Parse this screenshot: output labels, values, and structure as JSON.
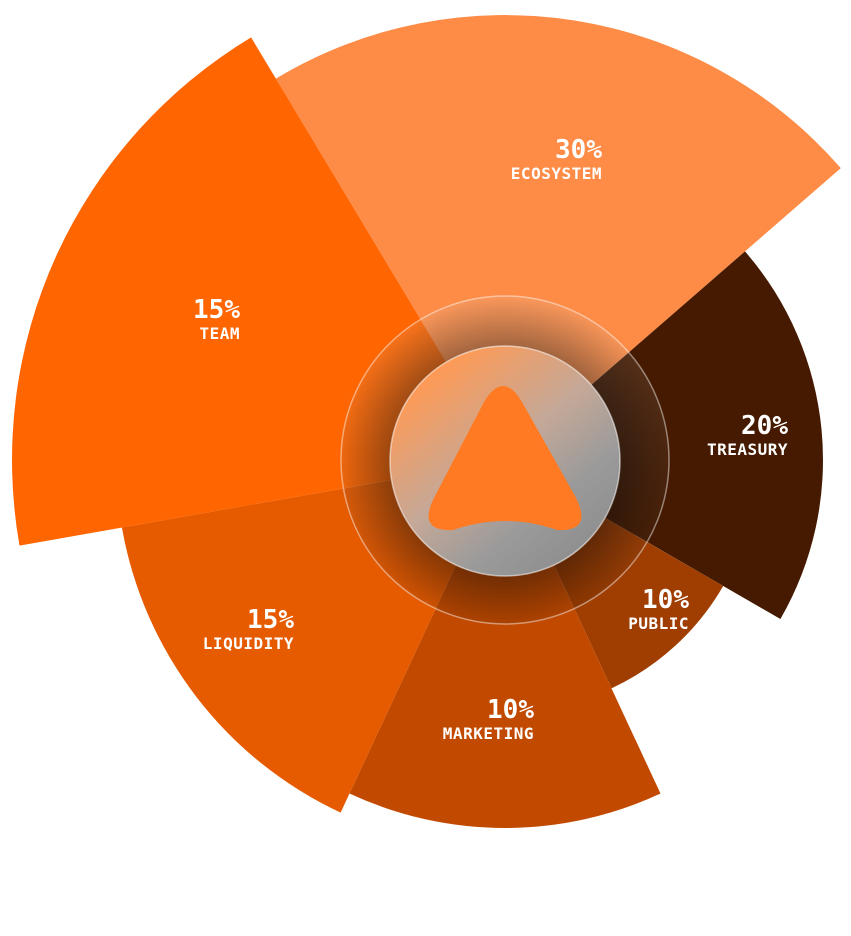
{
  "chart_data": {
    "type": "pie",
    "variant": "polar-area",
    "title": "",
    "segments": [
      {
        "label": "ECOSYSTEM",
        "value": 30,
        "display": "30%",
        "color": "#fe8c46"
      },
      {
        "label": "TREASURY",
        "value": 20,
        "display": "20%",
        "color": "#461a00"
      },
      {
        "label": "PUBLIC",
        "value": 10,
        "display": "10%",
        "color": "#a03d00"
      },
      {
        "label": "MARKETING",
        "value": 10,
        "display": "10%",
        "color": "#c24a00"
      },
      {
        "label": "LIQUIDITY",
        "value": 15,
        "display": "15%",
        "color": "#e65a00"
      },
      {
        "label": "TEAM",
        "value": 15,
        "display": "15%",
        "color": "#ff6500"
      }
    ]
  },
  "center_logo": {
    "icon": "rounded-triangle-logo-icon",
    "color": "#ff7a22"
  }
}
